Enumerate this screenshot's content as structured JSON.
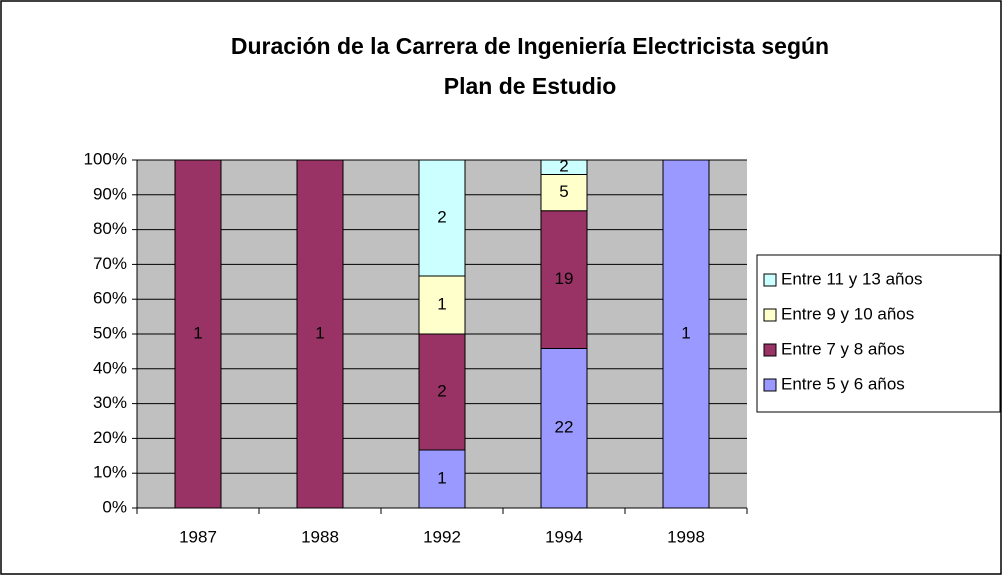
{
  "chart_data": {
    "type": "bar",
    "stacking": "percent",
    "title": [
      "Duración de la Carrera de Ingeniería Electricista según",
      "Plan de Estudio"
    ],
    "categories": [
      "1987",
      "1988",
      "1992",
      "1994",
      "1998"
    ],
    "series": [
      {
        "name": "Entre 5 y 6 años",
        "color": "#9999ff",
        "values": [
          0,
          0,
          1,
          22,
          1
        ]
      },
      {
        "name": "Entre 7 y 8 años",
        "color": "#993366",
        "values": [
          1,
          1,
          2,
          19,
          0
        ]
      },
      {
        "name": "Entre 9 y 10 años",
        "color": "#ffffcc",
        "values": [
          0,
          0,
          1,
          5,
          0
        ]
      },
      {
        "name": "Entre 11 y 13 años",
        "color": "#ccffff",
        "values": [
          0,
          0,
          2,
          2,
          0
        ]
      }
    ],
    "ylim": [
      0,
      100
    ],
    "yticks": [
      {
        "value": 0,
        "label": "0%"
      },
      {
        "value": 10,
        "label": "10%"
      },
      {
        "value": 20,
        "label": "20%"
      },
      {
        "value": 30,
        "label": "30%"
      },
      {
        "value": 40,
        "label": "40%"
      },
      {
        "value": 50,
        "label": "50%"
      },
      {
        "value": 60,
        "label": "60%"
      },
      {
        "value": 70,
        "label": "70%"
      },
      {
        "value": 80,
        "label": "80%"
      },
      {
        "value": 90,
        "label": "90%"
      },
      {
        "value": 100,
        "label": "100%"
      }
    ],
    "grid": true,
    "legend": "right",
    "plot_background": "#c0c0c0"
  }
}
